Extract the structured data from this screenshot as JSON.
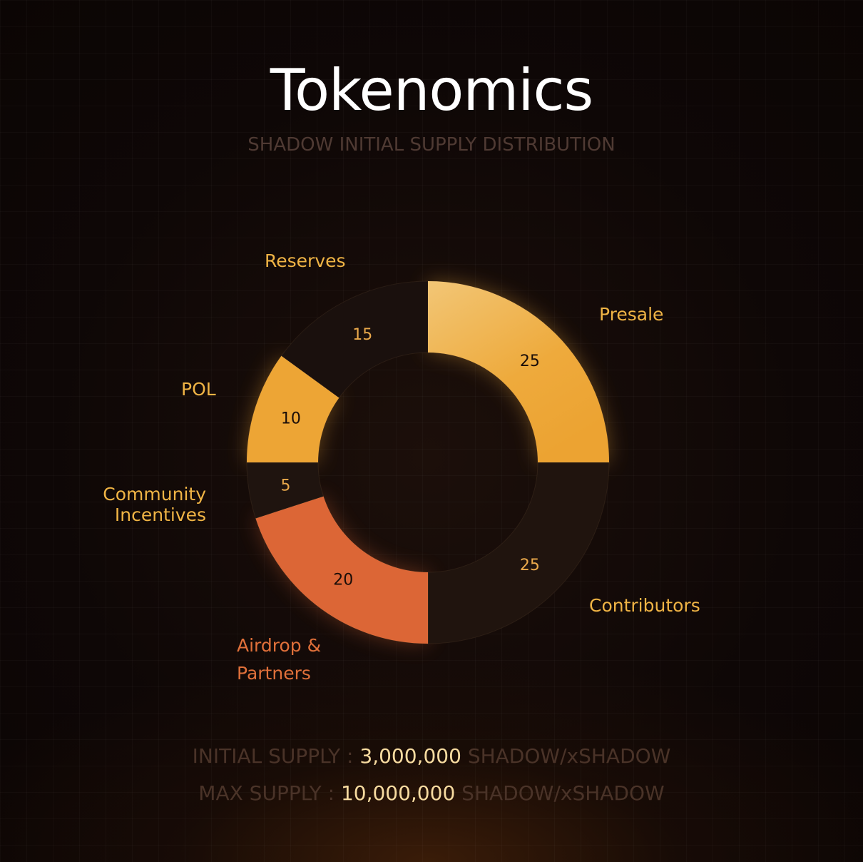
{
  "title": "Tokenomics",
  "subtitle": "SHADOW INITIAL SUPPLY DISTRIBUTION",
  "chart_data": {
    "type": "pie",
    "variant": "donut",
    "start": "top",
    "direction": "clockwise",
    "slices": [
      {
        "label": "Presale",
        "value": 25,
        "color": "#eeaa3c",
        "label_color": "#f0b445",
        "value_color": "#1a0d08"
      },
      {
        "label": "Contributors",
        "value": 25,
        "color": "#20140e",
        "label_color": "#f0b445",
        "value_color": "#eaa94b"
      },
      {
        "label": "Airdrop & Partners",
        "value": 20,
        "color": "#dc6636",
        "label_color": "#e0703a",
        "value_color": "#1a0d08"
      },
      {
        "label": "Community Incentives",
        "value": 5,
        "color": "#1f140f",
        "label_color": "#f0b445",
        "value_color": "#eaa94b"
      },
      {
        "label": "POL",
        "value": 10,
        "color": "#eda535",
        "label_color": "#f0b445",
        "value_color": "#1a0d08"
      },
      {
        "label": "Reserves",
        "value": 15,
        "color": "#1a100d",
        "label_color": "#f0b445",
        "value_color": "#eaa94b"
      }
    ]
  },
  "supply": {
    "initial": {
      "label": "INITIAL SUPPLY :",
      "value": "3,000,000",
      "unit": "SHADOW/xSHADOW"
    },
    "max": {
      "label": "MAX SUPPLY :",
      "value": "10,000,000",
      "unit": "SHADOW/xSHADOW"
    }
  }
}
